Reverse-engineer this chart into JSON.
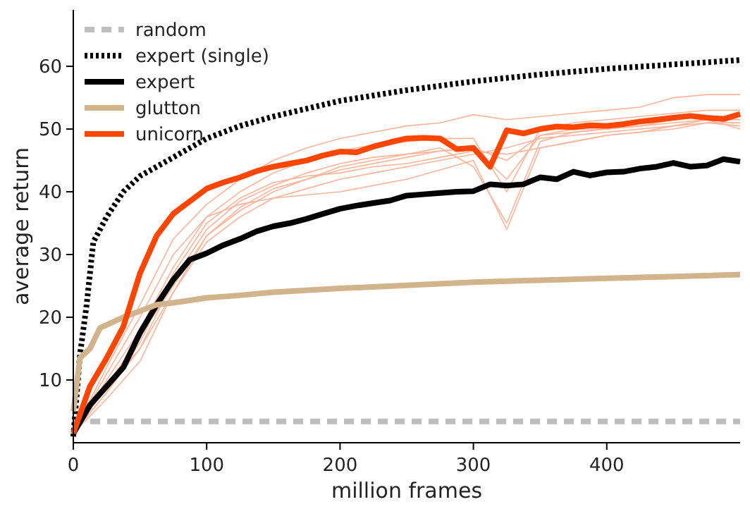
{
  "chart_data": {
    "type": "line",
    "xlabel": "million frames",
    "ylabel": "average return",
    "xlim": [
      0,
      500
    ],
    "ylim": [
      0,
      69
    ],
    "xticks": [
      0,
      100,
      200,
      300,
      400
    ],
    "yticks": [
      10,
      20,
      30,
      40,
      50,
      60
    ],
    "grid": false,
    "legend": "top left",
    "series": [
      {
        "name": "random",
        "color": "#bebebe",
        "line_style": "dashed",
        "x": [
          0,
          500
        ],
        "values": [
          3.4,
          3.4
        ]
      },
      {
        "name": "expert (single)",
        "color": "#000000",
        "line_style": "dotted",
        "x": [
          0,
          5,
          10,
          15,
          25,
          37.5,
          50,
          75,
          100,
          125,
          150,
          200,
          250,
          300,
          350,
          400,
          450,
          500
        ],
        "values": [
          1,
          14,
          22,
          32,
          36,
          40,
          42.5,
          45.5,
          48.5,
          50.5,
          52,
          54.5,
          56.2,
          57.6,
          58.7,
          59.6,
          60.3,
          61
        ]
      },
      {
        "name": "expert",
        "color": "#000000",
        "line_style": "solid",
        "x": [
          0,
          12.5,
          25,
          37.5,
          50,
          62.5,
          75,
          87.5,
          100,
          112.5,
          125,
          137.5,
          150,
          162.5,
          175,
          187.5,
          200,
          212.5,
          225,
          237.5,
          250,
          262.5,
          275,
          287.5,
          300,
          312.5,
          325,
          337.5,
          350,
          362.5,
          375,
          387.5,
          400,
          412.5,
          425,
          437.5,
          450,
          462.5,
          475,
          487.5,
          500
        ],
        "values": [
          1.5,
          6,
          9,
          12,
          17.5,
          22,
          26,
          29.2,
          30.2,
          31.5,
          32.5,
          33.7,
          34.5,
          35,
          35.7,
          36.5,
          37.3,
          37.8,
          38.2,
          38.6,
          39.4,
          39.6,
          39.8,
          40,
          40.1,
          41.2,
          41,
          41.2,
          42.3,
          42,
          43.2,
          42.6,
          43.1,
          43.2,
          43.7,
          44,
          44.6,
          44,
          44.2,
          45.2,
          44.8
        ]
      },
      {
        "name": "glutton",
        "color": "#d2b48c",
        "line_style": "solid",
        "x": [
          0,
          5,
          12.5,
          20,
          37.5,
          50,
          62.5,
          75,
          87.5,
          100,
          125,
          150,
          200,
          250,
          300,
          350,
          400,
          450,
          500
        ],
        "values": [
          5,
          13.5,
          15,
          18.3,
          20,
          21,
          22,
          22.3,
          22.7,
          23.1,
          23.5,
          24,
          24.6,
          25.1,
          25.6,
          25.9,
          26.2,
          26.5,
          26.8
        ]
      },
      {
        "name": "unicorn",
        "color": "#ff4500",
        "line_style": "solid",
        "x": [
          0,
          12.5,
          25,
          37.5,
          50,
          62.5,
          75,
          87.5,
          100,
          112.5,
          125,
          137.5,
          150,
          162.5,
          175,
          187.5,
          200,
          212.5,
          225,
          237.5,
          250,
          262.5,
          275,
          287.5,
          300,
          312.5,
          325,
          337.5,
          350,
          362.5,
          375,
          387.5,
          400,
          412.5,
          425,
          437.5,
          450,
          462.5,
          475,
          487.5,
          500
        ],
        "values": [
          1.5,
          9,
          13.5,
          18.5,
          27,
          33,
          36.5,
          38.5,
          40.5,
          41.5,
          42.3,
          43.3,
          44,
          44.5,
          45,
          45.8,
          46.4,
          46.3,
          47.2,
          47.9,
          48.5,
          48.6,
          48.5,
          46.8,
          47,
          44,
          49.8,
          49.3,
          50,
          50.4,
          50.3,
          50.6,
          50.5,
          50.8,
          51.2,
          51.5,
          51.8,
          52.1,
          51.8,
          51.6,
          52.4
        ]
      },
      {
        "color": "#ffb399",
        "line_style": "solid",
        "x": [
          0,
          25,
          50,
          75,
          100,
          125,
          150,
          175,
          200,
          225,
          250,
          275,
          300,
          325,
          350,
          375,
          400,
          425,
          450,
          475,
          500
        ],
        "values": [
          1.5,
          12,
          22,
          32.5,
          38,
          42,
          45,
          47,
          48.5,
          49.5,
          50.5,
          51,
          52.3,
          51.5,
          52,
          52.5,
          53,
          53.5,
          55,
          55.5,
          55.5
        ]
      },
      {
        "color": "#ffb399",
        "line_style": "solid",
        "x": [
          0,
          25,
          50,
          75,
          100,
          125,
          150,
          175,
          200,
          225,
          250,
          275,
          300,
          325,
          350,
          375,
          400,
          425,
          450,
          475,
          500
        ],
        "values": [
          1.5,
          10,
          18,
          28,
          36,
          40,
          43,
          45,
          46.5,
          47.5,
          48,
          48.5,
          48.5,
          40,
          50,
          51,
          51.5,
          52,
          52.5,
          53,
          53
        ]
      },
      {
        "color": "#ffb399",
        "line_style": "solid",
        "x": [
          0,
          25,
          50,
          75,
          100,
          125,
          150,
          175,
          200,
          225,
          250,
          275,
          300,
          325,
          350,
          375,
          400,
          425,
          450,
          475,
          500
        ],
        "values": [
          1.5,
          8,
          15,
          26,
          34,
          38.5,
          41,
          43,
          44.5,
          45.5,
          46,
          47,
          44,
          35,
          48,
          49.5,
          50,
          50.5,
          51.5,
          52,
          52
        ]
      },
      {
        "color": "#ffb399",
        "line_style": "solid",
        "x": [
          0,
          25,
          50,
          75,
          100,
          125,
          150,
          175,
          200,
          225,
          250,
          275,
          300,
          325,
          350,
          375,
          400,
          425,
          450,
          475,
          500
        ],
        "values": [
          1.5,
          9,
          17,
          25,
          33,
          37,
          40,
          42,
          43.5,
          44.5,
          45.5,
          46.5,
          47,
          45,
          49,
          49.5,
          50,
          50.5,
          51,
          51.5,
          51.5
        ]
      },
      {
        "color": "#ffb399",
        "line_style": "solid",
        "x": [
          0,
          25,
          50,
          75,
          100,
          125,
          150,
          175,
          200,
          225,
          250,
          275,
          300,
          325,
          350,
          375,
          400,
          425,
          450,
          475,
          500
        ],
        "values": [
          1.5,
          7,
          13,
          24,
          32,
          36,
          39,
          40.5,
          42,
          43,
          44,
          45,
          46,
          47,
          48.5,
          49,
          49.5,
          50,
          50.5,
          51,
          51
        ]
      },
      {
        "color": "#ffb399",
        "line_style": "solid",
        "x": [
          0,
          25,
          50,
          75,
          100,
          125,
          150,
          175,
          200,
          225,
          250,
          275,
          300,
          325,
          350,
          375,
          400,
          425,
          450,
          475,
          500
        ],
        "values": [
          1.5,
          8,
          16,
          27,
          35,
          39,
          41.5,
          42.5,
          43,
          44,
          44.5,
          45.5,
          46.5,
          46,
          47,
          48,
          49,
          49.5,
          50.5,
          51.5,
          50
        ]
      },
      {
        "color": "#ffb399",
        "line_style": "solid",
        "x": [
          0,
          25,
          50,
          75,
          100,
          125,
          150,
          175,
          200,
          225,
          250,
          275,
          300,
          325,
          350,
          375,
          400,
          425,
          450,
          475,
          500
        ],
        "values": [
          1.5,
          11,
          20,
          30,
          36,
          38,
          39,
          39.5,
          40,
          41,
          42,
          43.5,
          45,
          34,
          47,
          48,
          49,
          49.5,
          50,
          51,
          50.5
        ]
      },
      {
        "color": "#ffb399",
        "line_style": "solid",
        "x": [
          0,
          25,
          50,
          75,
          100,
          125,
          150,
          175,
          200,
          225,
          250,
          275,
          300,
          325,
          350,
          375,
          400,
          425,
          450,
          475,
          500
        ],
        "values": [
          1.5,
          9,
          15,
          24,
          33,
          37.5,
          40.5,
          42,
          44,
          45,
          46,
          46.5,
          47,
          42,
          49,
          50,
          50,
          51,
          51.5,
          52,
          51.5
        ]
      }
    ]
  }
}
